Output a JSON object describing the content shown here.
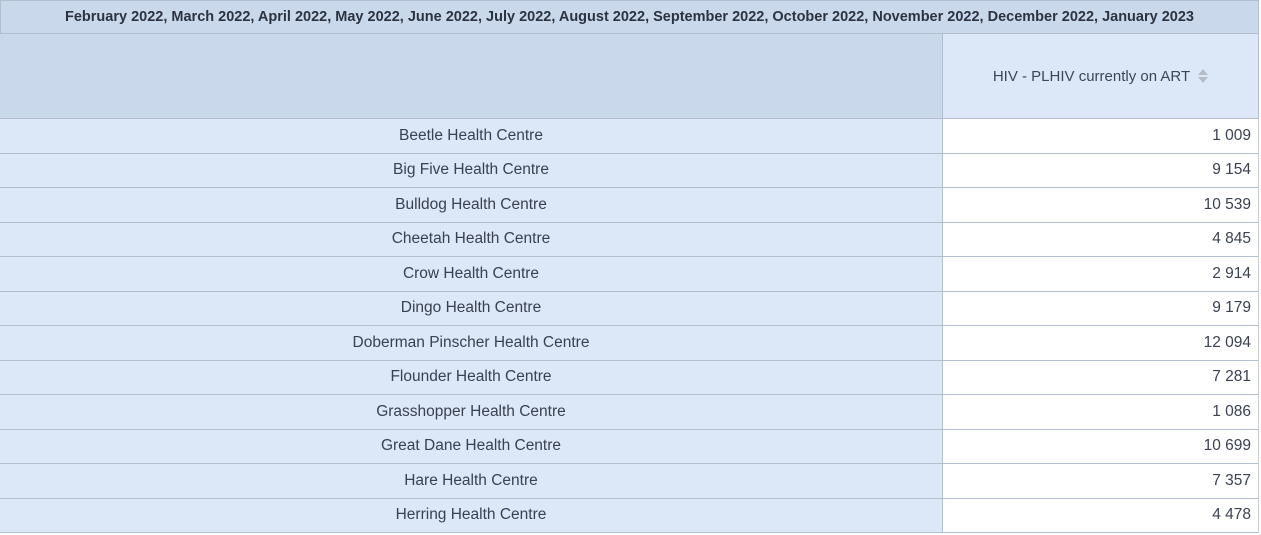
{
  "table": {
    "period_title": "February 2022, March 2022, April 2022, May 2022, June 2022, July 2022, August 2022, September 2022, October 2022, November 2022, December 2022, January 2023",
    "column_header": "HIV - PLHIV currently on ART",
    "colors": {
      "title_bg": "#cad8ec",
      "row_header_bg": "#dce7f7",
      "value_bg": "#ffffff",
      "border": "#b3bfd1"
    },
    "rows": [
      {
        "name": "Beetle Health Centre",
        "value": "1 009"
      },
      {
        "name": "Big Five Health Centre",
        "value": "9 154"
      },
      {
        "name": "Bulldog Health Centre",
        "value": "10 539"
      },
      {
        "name": "Cheetah Health Centre",
        "value": "4 845"
      },
      {
        "name": "Crow Health Centre",
        "value": "2 914"
      },
      {
        "name": "Dingo Health Centre",
        "value": "9 179"
      },
      {
        "name": "Doberman Pinscher Health Centre",
        "value": "12 094"
      },
      {
        "name": "Flounder Health Centre",
        "value": "7 281"
      },
      {
        "name": "Grasshopper Health Centre",
        "value": "1 086"
      },
      {
        "name": "Great Dane Health Centre",
        "value": "10 699"
      },
      {
        "name": "Hare Health Centre",
        "value": "7 357"
      },
      {
        "name": "Herring Health Centre",
        "value": "4 478"
      }
    ]
  }
}
